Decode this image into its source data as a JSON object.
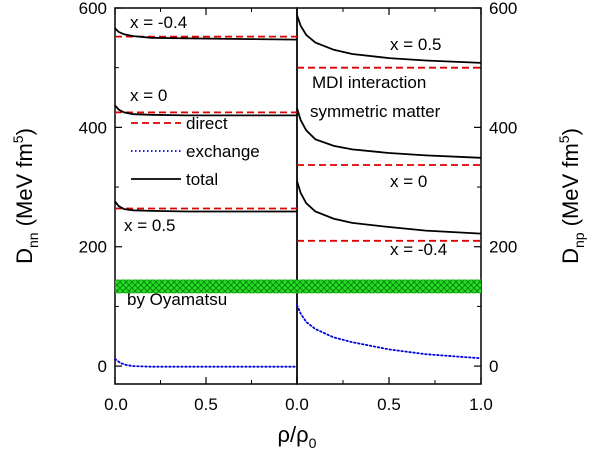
{
  "chart_data": [
    {
      "type": "line",
      "panel": "left",
      "ylabel": {
        "main": "D",
        "sub": "nn",
        "unit_pre": " (MeV fm",
        "unit_sup": "5",
        "unit_post": ")"
      },
      "xlabel": {
        "main": "ρ/ρ",
        "sub": "0"
      },
      "xlim": [
        0,
        1
      ],
      "ylim": [
        -30,
        600
      ],
      "xticks": [
        "0.0",
        "0.5"
      ],
      "yticks": [
        0,
        200,
        400,
        600
      ],
      "legend": {
        "placement": "middle-left",
        "entries": [
          "direct",
          "exchange",
          "total"
        ]
      },
      "annotations": [
        "x = -0.4",
        "x = 0",
        "x = 0.5",
        "by Oyamatsu"
      ],
      "band": {
        "label": "by Oyamatsu",
        "range": [
          122,
          145
        ]
      },
      "series": [
        {
          "name": "direct",
          "style": "dashed",
          "color": "#dd0000",
          "group": "x = -0.4",
          "x": [
            0,
            0.05,
            1
          ],
          "y": [
            552,
            552,
            552
          ]
        },
        {
          "name": "total",
          "style": "solid",
          "color": "#000000",
          "group": "x = -0.4",
          "x": [
            0,
            0.02,
            0.05,
            0.1,
            0.2,
            0.4,
            0.7,
            1.0
          ],
          "y": [
            566,
            560,
            556,
            553,
            550,
            549,
            548,
            547
          ]
        },
        {
          "name": "direct",
          "style": "dashed",
          "color": "#dd0000",
          "group": "x = 0",
          "x": [
            0,
            0.05,
            1
          ],
          "y": [
            425,
            425,
            425
          ]
        },
        {
          "name": "total",
          "style": "solid",
          "color": "#000000",
          "group": "x = 0",
          "x": [
            0,
            0.02,
            0.05,
            0.1,
            0.2,
            0.4,
            0.7,
            1.0
          ],
          "y": [
            437,
            430,
            425,
            422,
            421,
            420,
            420,
            420
          ]
        },
        {
          "name": "direct",
          "style": "dashed",
          "color": "#dd0000",
          "group": "x = 0.5",
          "x": [
            0,
            0.05,
            1
          ],
          "y": [
            264,
            264,
            264
          ]
        },
        {
          "name": "total",
          "style": "solid",
          "color": "#000000",
          "group": "x = 0.5",
          "x": [
            0,
            0.02,
            0.05,
            0.1,
            0.2,
            0.4,
            0.7,
            1.0
          ],
          "y": [
            276,
            268,
            263,
            261,
            260,
            259,
            259,
            259
          ]
        },
        {
          "name": "exchange",
          "style": "dotted",
          "color": "#0000dd",
          "group": "",
          "x": [
            0,
            0.03,
            0.06,
            0.1,
            0.2,
            0.4,
            0.7,
            1.0
          ],
          "y": [
            12,
            5,
            2,
            0,
            -1,
            -1,
            -1,
            -1
          ]
        }
      ]
    },
    {
      "type": "line",
      "panel": "right",
      "ylabel": {
        "main": "D",
        "sub": "np",
        "unit_pre": " (MeV fm",
        "unit_sup": "5",
        "unit_post": ")"
      },
      "xlabel": {
        "main": "ρ/ρ",
        "sub": "0"
      },
      "xlim": [
        0,
        1
      ],
      "ylim": [
        -30,
        600
      ],
      "xticks": [
        "0.0",
        "0.5",
        "1.0"
      ],
      "yticks": [
        0,
        200,
        400,
        600
      ],
      "annotations": [
        "x = 0.5",
        "MDI interaction",
        "symmetric matter",
        "x = 0",
        "x = -0.4"
      ],
      "band": {
        "label": "",
        "range": [
          122,
          145
        ]
      },
      "series": [
        {
          "name": "total",
          "style": "solid",
          "color": "#000000",
          "group": "x = 0.5",
          "x": [
            0,
            0.02,
            0.05,
            0.1,
            0.2,
            0.3,
            0.5,
            0.7,
            1.0
          ],
          "y": [
            588,
            570,
            555,
            542,
            530,
            523,
            516,
            512,
            508
          ]
        },
        {
          "name": "direct",
          "style": "dashed",
          "color": "#dd0000",
          "group": "x = 0.5",
          "x": [
            0,
            0.05,
            1
          ],
          "y": [
            500,
            500,
            500
          ]
        },
        {
          "name": "total",
          "style": "solid",
          "color": "#000000",
          "group": "x = 0",
          "x": [
            0,
            0.02,
            0.05,
            0.1,
            0.2,
            0.3,
            0.5,
            0.7,
            1.0
          ],
          "y": [
            432,
            412,
            395,
            380,
            369,
            363,
            357,
            353,
            349
          ]
        },
        {
          "name": "direct",
          "style": "dashed",
          "color": "#dd0000",
          "group": "x = 0",
          "x": [
            0,
            0.05,
            1
          ],
          "y": [
            337,
            337,
            337
          ]
        },
        {
          "name": "total",
          "style": "solid",
          "color": "#000000",
          "group": "x = -0.4",
          "x": [
            0,
            0.02,
            0.05,
            0.1,
            0.2,
            0.3,
            0.5,
            0.7,
            1.0
          ],
          "y": [
            310,
            290,
            273,
            259,
            247,
            240,
            233,
            227,
            222
          ]
        },
        {
          "name": "direct",
          "style": "dashed",
          "color": "#dd0000",
          "group": "x = -0.4",
          "x": [
            0,
            0.05,
            1
          ],
          "y": [
            210,
            210,
            210
          ]
        },
        {
          "name": "exchange",
          "style": "dotted",
          "color": "#0000dd",
          "group": "",
          "x": [
            0,
            0.02,
            0.05,
            0.1,
            0.2,
            0.3,
            0.5,
            0.7,
            1.0
          ],
          "y": [
            102,
            88,
            74,
            62,
            48,
            40,
            28,
            20,
            13
          ]
        }
      ]
    }
  ]
}
